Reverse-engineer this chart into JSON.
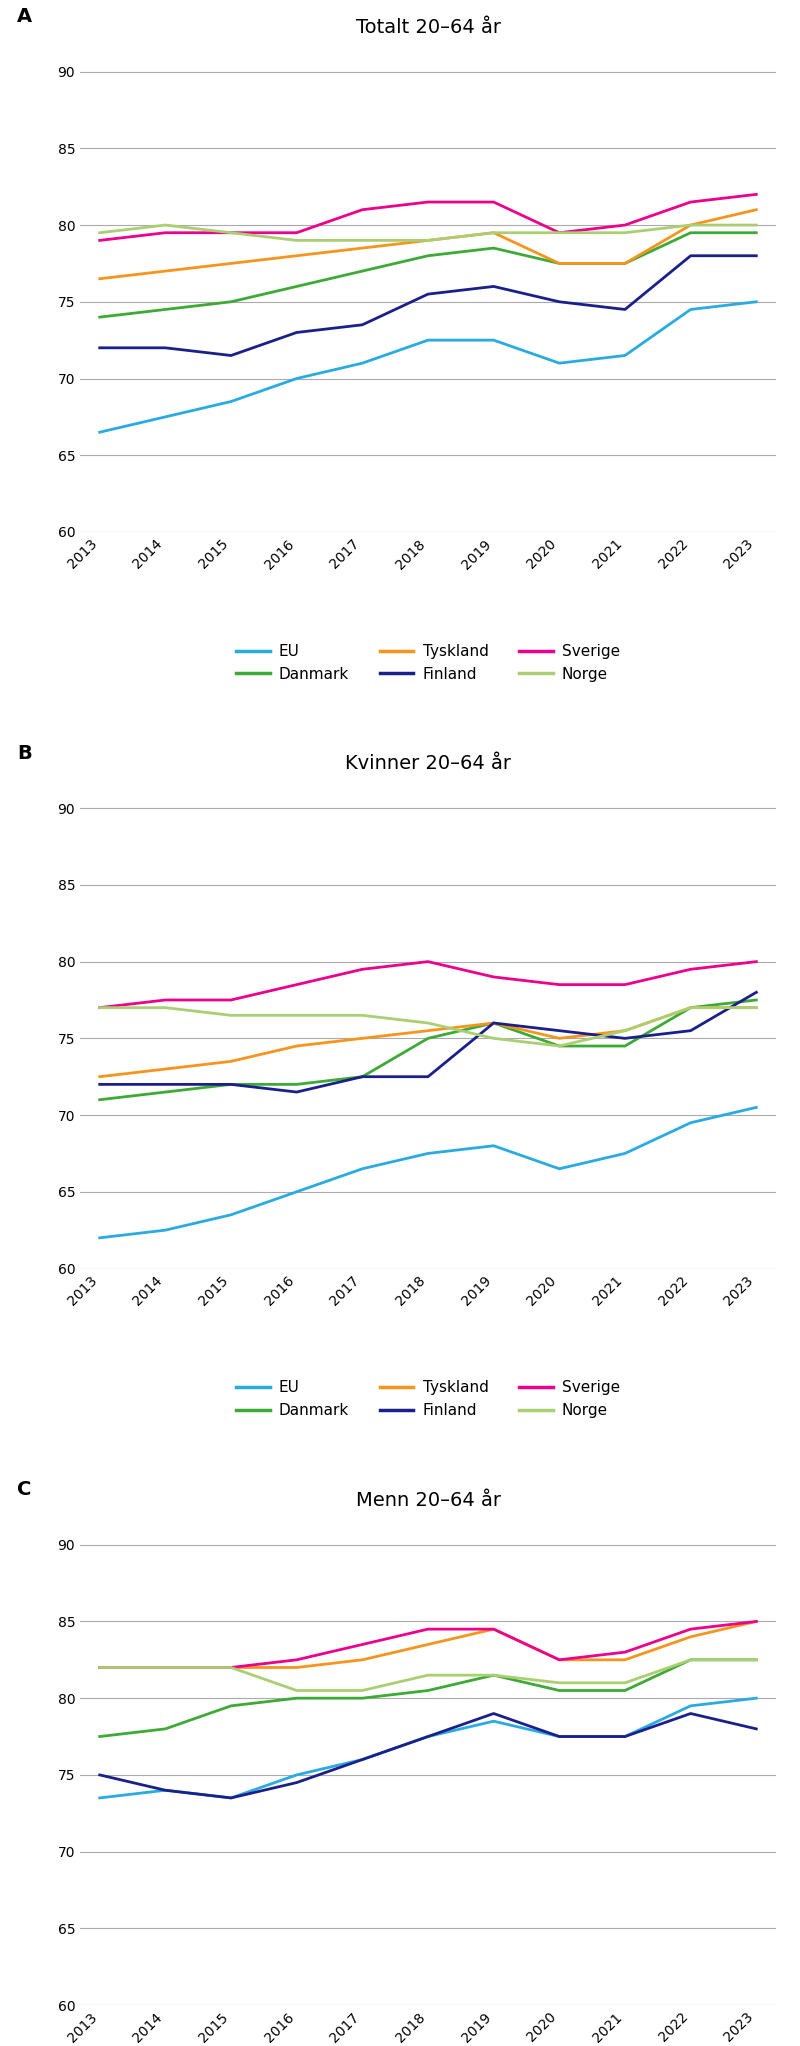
{
  "years": [
    2013,
    2014,
    2015,
    2016,
    2017,
    2018,
    2019,
    2020,
    2021,
    2022,
    2023
  ],
  "panels": [
    {
      "label": "A",
      "title": "Totalt 20–64 år",
      "ylim": [
        60,
        92
      ],
      "yticks": [
        60,
        65,
        70,
        75,
        80,
        85,
        90
      ],
      "series": {
        "EU": [
          66.5,
          67.5,
          68.5,
          70.0,
          71.0,
          72.5,
          72.5,
          71.0,
          71.5,
          74.5,
          75.0
        ],
        "Danmark": [
          74.0,
          74.5,
          75.0,
          76.0,
          77.0,
          78.0,
          78.5,
          77.5,
          77.5,
          79.5,
          79.5
        ],
        "Tyskland": [
          76.5,
          77.0,
          77.5,
          78.0,
          78.5,
          79.0,
          79.5,
          77.5,
          77.5,
          80.0,
          81.0
        ],
        "Finland": [
          72.0,
          72.0,
          71.5,
          73.0,
          73.5,
          75.5,
          76.0,
          75.0,
          74.5,
          78.0,
          78.0
        ],
        "Sverige": [
          79.0,
          79.5,
          79.5,
          79.5,
          81.0,
          81.5,
          81.5,
          79.5,
          80.0,
          81.5,
          82.0
        ],
        "Norge": [
          79.5,
          80.0,
          79.5,
          79.0,
          79.0,
          79.0,
          79.5,
          79.5,
          79.5,
          80.0,
          80.0
        ]
      }
    },
    {
      "label": "B",
      "title": "Kvinner 20–64 år",
      "ylim": [
        60,
        92
      ],
      "yticks": [
        60,
        65,
        70,
        75,
        80,
        85,
        90
      ],
      "series": {
        "EU": [
          62.0,
          62.5,
          63.5,
          65.0,
          66.5,
          67.5,
          68.0,
          66.5,
          67.5,
          69.5,
          70.5
        ],
        "Danmark": [
          71.0,
          71.5,
          72.0,
          72.0,
          72.5,
          75.0,
          76.0,
          74.5,
          74.5,
          77.0,
          77.5
        ],
        "Tyskland": [
          72.5,
          73.0,
          73.5,
          74.5,
          75.0,
          75.5,
          76.0,
          75.0,
          75.5,
          77.0,
          77.0
        ],
        "Finland": [
          72.0,
          72.0,
          72.0,
          71.5,
          72.5,
          72.5,
          76.0,
          75.5,
          75.0,
          75.5,
          78.0
        ],
        "Sverige": [
          77.0,
          77.5,
          77.5,
          78.5,
          79.5,
          80.0,
          79.0,
          78.5,
          78.5,
          79.5,
          80.0
        ],
        "Norge": [
          77.0,
          77.0,
          76.5,
          76.5,
          76.5,
          76.0,
          75.0,
          74.5,
          75.5,
          77.0,
          77.0
        ]
      }
    },
    {
      "label": "C",
      "title": "Menn 20–64 år",
      "ylim": [
        60,
        92
      ],
      "yticks": [
        60,
        65,
        70,
        75,
        80,
        85,
        90
      ],
      "series": {
        "EU": [
          73.5,
          74.0,
          73.5,
          75.0,
          76.0,
          77.5,
          78.5,
          77.5,
          77.5,
          79.5,
          80.0
        ],
        "Danmark": [
          77.5,
          78.0,
          79.5,
          80.0,
          80.0,
          80.5,
          81.5,
          80.5,
          80.5,
          82.5,
          82.5
        ],
        "Tyskland": [
          82.0,
          82.0,
          82.0,
          82.0,
          82.5,
          83.5,
          84.5,
          82.5,
          82.5,
          84.0,
          85.0
        ],
        "Finland": [
          75.0,
          74.0,
          73.5,
          74.5,
          76.0,
          77.5,
          79.0,
          77.5,
          77.5,
          79.0,
          78.0
        ],
        "Sverige": [
          82.0,
          82.0,
          82.0,
          82.5,
          83.5,
          84.5,
          84.5,
          82.5,
          83.0,
          84.5,
          85.0
        ],
        "Norge": [
          82.0,
          82.0,
          82.0,
          80.5,
          80.5,
          81.5,
          81.5,
          81.0,
          81.0,
          82.5,
          82.5
        ]
      }
    }
  ],
  "colors": {
    "EU": "#29ABE2",
    "Danmark": "#3DAA35",
    "Tyskland": "#F7941D",
    "Finland": "#1B1F8A",
    "Sverige": "#EC008C",
    "Norge": "#AACF72"
  },
  "legend_order": [
    "EU",
    "Danmark",
    "Tyskland",
    "Finland",
    "Sverige",
    "Norge"
  ],
  "background_color": "#FFFFFF",
  "line_width": 2.0,
  "title_fontsize": 14,
  "label_fontsize": 14,
  "tick_fontsize": 10,
  "legend_fontsize": 11
}
